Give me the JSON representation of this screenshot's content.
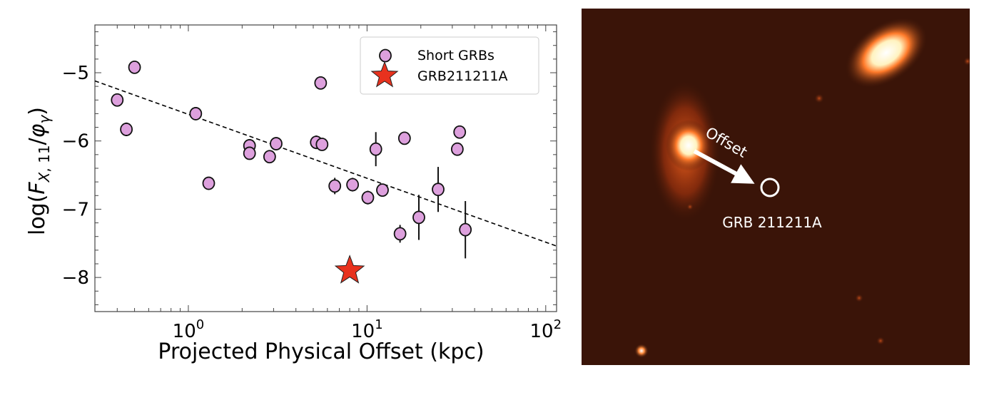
{
  "chart_data": {
    "type": "scatter",
    "xlabel": "Projected Physical Offset (kpc)",
    "ylabel": "log(F_{X,11}/φ_γ)",
    "xscale": "log",
    "xlim": [
      0.3,
      115
    ],
    "ylim": [
      -8.5,
      -4.3
    ],
    "x_ticks": [
      {
        "value": 1,
        "label": "10",
        "exp": "0"
      },
      {
        "value": 10,
        "label": "10",
        "exp": "1"
      },
      {
        "value": 100,
        "label": "10",
        "exp": "2"
      }
    ],
    "y_ticks": [
      -5,
      -6,
      -7,
      -8
    ],
    "y_tick_labels": [
      "−5",
      "−6",
      "−7",
      "−8"
    ],
    "grid": false,
    "legend_position": "top-right",
    "series": [
      {
        "name": "Short GRBs",
        "marker": "circle",
        "color": "#dda0dd",
        "points": [
          {
            "x": 0.4,
            "y": -5.4,
            "err": 0
          },
          {
            "x": 0.45,
            "y": -5.83,
            "err": 0.1
          },
          {
            "x": 0.5,
            "y": -4.92,
            "err": 0
          },
          {
            "x": 1.1,
            "y": -5.6,
            "err": 0
          },
          {
            "x": 1.3,
            "y": -6.62,
            "err": 0
          },
          {
            "x": 2.2,
            "y": -6.07,
            "err": 0.05
          },
          {
            "x": 2.2,
            "y": -6.18,
            "err": 0.08
          },
          {
            "x": 2.85,
            "y": -6.23,
            "err": 0
          },
          {
            "x": 3.1,
            "y": -6.04,
            "err": 0
          },
          {
            "x": 5.2,
            "y": -6.02,
            "err": 0.1
          },
          {
            "x": 5.5,
            "y": -5.15,
            "err": 0
          },
          {
            "x": 5.6,
            "y": -6.05,
            "err": 0
          },
          {
            "x": 6.6,
            "y": -6.66,
            "err": 0.12
          },
          {
            "x": 8.3,
            "y": -6.64,
            "err": 0.1
          },
          {
            "x": 10.1,
            "y": -6.83,
            "err": 0.1
          },
          {
            "x": 11.2,
            "y": -6.12,
            "err": 0.25
          },
          {
            "x": 12.2,
            "y": -6.72,
            "err": 0.08
          },
          {
            "x": 15.3,
            "y": -7.36,
            "err": 0.13
          },
          {
            "x": 16.2,
            "y": -5.96,
            "err": 0
          },
          {
            "x": 19.5,
            "y": -7.12,
            "err": 0.33
          },
          {
            "x": 25,
            "y": -6.71,
            "err": 0.33
          },
          {
            "x": 32,
            "y": -6.12,
            "err": 0
          },
          {
            "x": 33,
            "y": -5.87,
            "err": 0
          },
          {
            "x": 35.5,
            "y": -7.3,
            "err": 0.42
          }
        ]
      },
      {
        "name": "GRB211211A",
        "marker": "star",
        "color": "#e8321e",
        "points": [
          {
            "x": 8.0,
            "y": -7.9,
            "err": 0
          }
        ]
      }
    ],
    "fit_line": {
      "style": "dashed",
      "color": "#000000",
      "x": [
        0.3,
        115
      ],
      "y": [
        -5.12,
        -7.54
      ]
    }
  },
  "image_panel": {
    "background_color": "#3a1408",
    "arrow_label": "Offset",
    "grb_label": "GRB 211211A"
  }
}
